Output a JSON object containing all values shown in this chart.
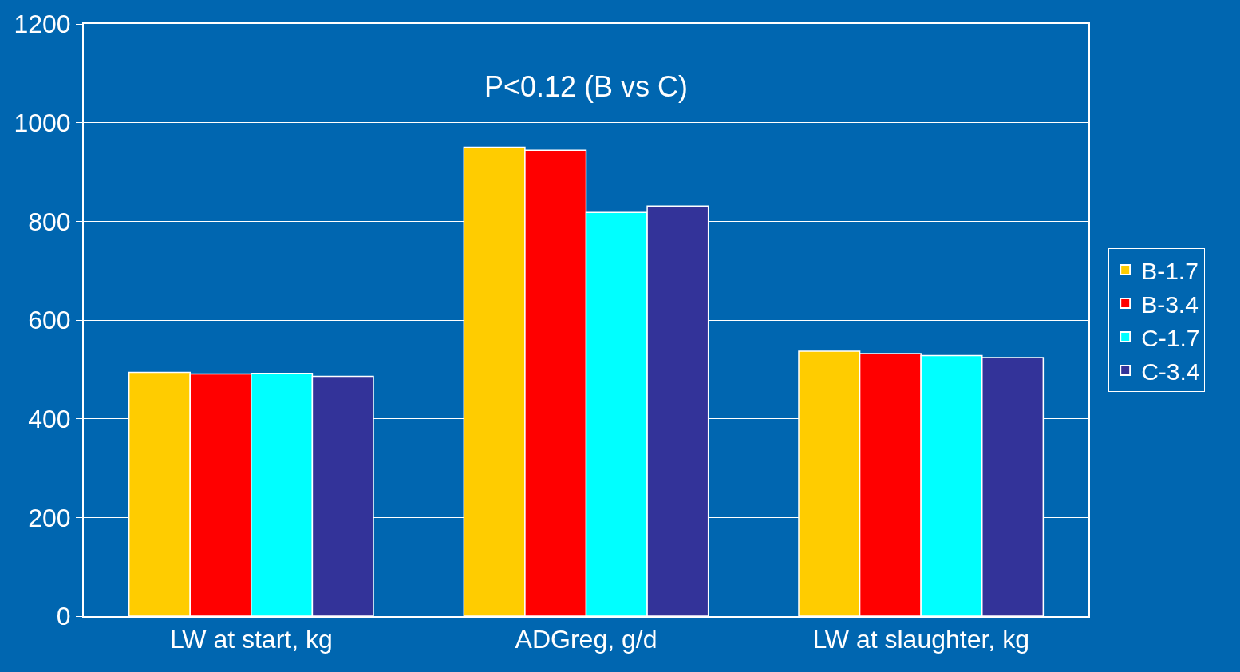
{
  "chart_data": {
    "type": "bar",
    "categories": [
      "LW at start, kg",
      "ADGreg, g/d",
      "LW at slaughter, kg"
    ],
    "series": [
      {
        "name": "B-1.7",
        "color": "#ffcc00",
        "values": [
          494,
          950,
          537
        ]
      },
      {
        "name": "B-3.4",
        "color": "#ff0000",
        "values": [
          491,
          944,
          532
        ]
      },
      {
        "name": "C-1.7",
        "color": "#00ffff",
        "values": [
          492,
          818,
          528
        ]
      },
      {
        "name": "C-3.4",
        "color": "#333399",
        "values": [
          486,
          831,
          524
        ]
      }
    ],
    "ylim": [
      0,
      1200
    ],
    "yticks": [
      0,
      200,
      400,
      600,
      800,
      1000,
      1200
    ],
    "grid": "y",
    "legend": "right",
    "annotations": [
      "P<0.12 (B vs C)"
    ]
  }
}
